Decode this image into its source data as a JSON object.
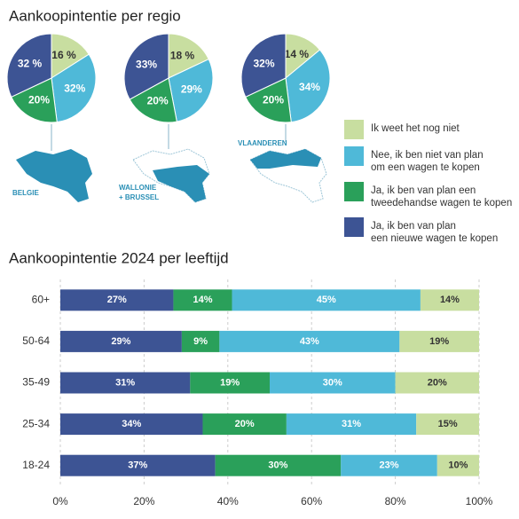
{
  "chart_data": [
    {
      "type": "pie",
      "title": "Aankoopintentie per regio",
      "categories": [
        "Ik weet het nog niet",
        "Nee, ik ben niet van plan\nom een wagen te kopen",
        "Ja, ik ben van plan een\ntweedehandse wagen te kopen",
        "Ja, ik ben van plan\neen nieuwe wagen te kopen"
      ],
      "colors": [
        "#c8dea0",
        "#4fb9d8",
        "#2aa05a",
        "#3d5494"
      ],
      "pies": [
        {
          "label": [
            "BELGIE"
          ],
          "values": [
            16,
            32,
            20,
            32
          ],
          "value_labels": [
            "16 %",
            "32%",
            "20%",
            "32 %"
          ]
        },
        {
          "label": [
            "WALLONIE",
            "+ BRUSSEL"
          ],
          "values": [
            18,
            29,
            20,
            33
          ],
          "value_labels": [
            "18 %",
            "29%",
            "20%",
            "33%"
          ]
        },
        {
          "label": [
            "VLAANDEREN"
          ],
          "values": [
            14,
            34,
            20,
            32
          ],
          "value_labels": [
            "14 %",
            "34%",
            "20%",
            "32%"
          ]
        }
      ]
    },
    {
      "type": "bar",
      "title": "Aankoopintentie 2024 per leeftijd",
      "orientation": "horizontal",
      "stacked": true,
      "categories": [
        "60+",
        "50-64",
        "35-49",
        "25-34",
        "18-24"
      ],
      "series": [
        {
          "color": "#3d5494",
          "values": [
            27,
            29,
            31,
            34,
            37
          ],
          "value_labels": [
            "27%",
            "29%",
            "31%",
            "34%",
            "37%"
          ]
        },
        {
          "color": "#2aa05a",
          "values": [
            14,
            9,
            19,
            20,
            30
          ],
          "value_labels": [
            "14%",
            "9%",
            "19%",
            "20%",
            "30%"
          ]
        },
        {
          "color": "#4fb9d8",
          "values": [
            45,
            43,
            30,
            31,
            23
          ],
          "value_labels": [
            "45%",
            "43%",
            "30%",
            "31%",
            "23%"
          ]
        },
        {
          "color": "#c8dea0",
          "values": [
            14,
            19,
            20,
            15,
            10
          ],
          "value_labels": [
            "14%",
            "19%",
            "20%",
            "15%",
            "10%"
          ]
        }
      ],
      "xlim": [
        0,
        100
      ],
      "xticks": [
        {
          "value": 0,
          "label": "0%"
        },
        {
          "value": 20,
          "label": "20%"
        },
        {
          "value": 40,
          "label": "40%"
        },
        {
          "value": 60,
          "label": "60%"
        },
        {
          "value": 80,
          "label": "80%"
        },
        {
          "value": 100,
          "label": "100%"
        }
      ],
      "grid": true
    }
  ]
}
